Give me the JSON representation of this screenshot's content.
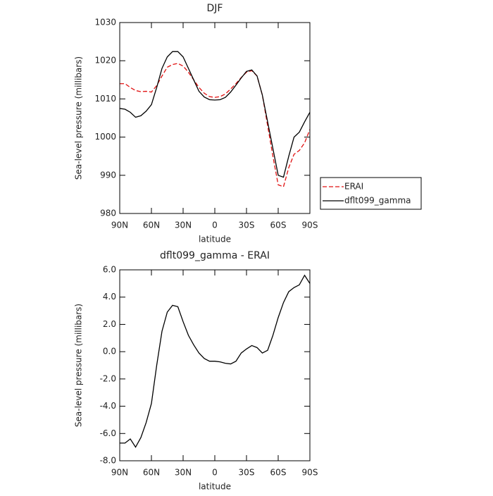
{
  "chart_data": [
    {
      "type": "line",
      "title": "DJF",
      "x_label": "latitude",
      "y_label": "Sea-level pressure (millibars)",
      "x": [
        90,
        85,
        80,
        75,
        70,
        65,
        60,
        55,
        50,
        45,
        40,
        35,
        30,
        25,
        20,
        15,
        10,
        5,
        0,
        -5,
        -10,
        -15,
        -20,
        -25,
        -30,
        -35,
        -40,
        -45,
        -50,
        -55,
        -60,
        -65,
        -70,
        -75,
        -80,
        -85,
        -90
      ],
      "series": [
        {
          "name": "ERAI",
          "color": "#e01010",
          "line_style": "dashed",
          "values": [
            1014,
            1014,
            1013,
            1012.2,
            1011.9,
            1012,
            1011.8,
            1013.5,
            1016,
            1018.3,
            1019,
            1019.3,
            1018.6,
            1017,
            1015,
            1013,
            1011.5,
            1010.6,
            1010.4,
            1010.6,
            1011.3,
            1012.6,
            1014,
            1015.6,
            1017,
            1017.4,
            1016,
            1011,
            1003,
            995,
            987.5,
            987,
            992,
            995.5,
            996.5,
            998.5,
            1002
          ]
        },
        {
          "name": "dflt099_gamma",
          "color": "#000000",
          "line_style": "solid",
          "values": [
            1007.5,
            1007.3,
            1006.5,
            1005.2,
            1005.6,
            1006.8,
            1008.5,
            1013,
            1018,
            1021,
            1022.4,
            1022.4,
            1021,
            1018,
            1015,
            1012,
            1010.5,
            1009.8,
            1009.7,
            1009.8,
            1010.4,
            1011.8,
            1013.6,
            1015.5,
            1017.2,
            1017.6,
            1016,
            1011,
            1004,
            997,
            990,
            989.5,
            995,
            1000,
            1001.3,
            1004,
            1006.5
          ]
        }
      ],
      "xlim": [
        90,
        -90
      ],
      "xticks": [
        {
          "value": 90,
          "label": "90N"
        },
        {
          "value": 60,
          "label": "60N"
        },
        {
          "value": 30,
          "label": "30N"
        },
        0,
        {
          "value": -30,
          "label": "30S"
        },
        {
          "value": -60,
          "label": "60S"
        },
        {
          "value": -90,
          "label": "90S"
        }
      ],
      "ylim": [
        980,
        1030
      ],
      "yticks": [
        980,
        990,
        1000,
        1010,
        1020,
        1030
      ],
      "legend": "right"
    },
    {
      "type": "line",
      "title": "dflt099_gamma - ERAI",
      "x_label": "latitude",
      "y_label": "Sea-level pressure (millibars)",
      "x": [
        90,
        85,
        80,
        75,
        70,
        65,
        60,
        55,
        50,
        45,
        40,
        35,
        30,
        25,
        20,
        15,
        10,
        5,
        0,
        -5,
        -10,
        -15,
        -20,
        -25,
        -30,
        -35,
        -40,
        -45,
        -50,
        -55,
        -60,
        -65,
        -70,
        -75,
        -80,
        -85,
        -90
      ],
      "series": [
        {
          "color": "#000000",
          "line_style": "solid",
          "values": [
            -6.7,
            -6.7,
            -6.4,
            -7.0,
            -6.3,
            -5.2,
            -3.8,
            -1.0,
            1.5,
            2.9,
            3.4,
            3.3,
            2.2,
            1.2,
            0.5,
            -0.1,
            -0.5,
            -0.7,
            -0.7,
            -0.75,
            -0.85,
            -0.9,
            -0.7,
            -0.1,
            0.2,
            0.45,
            0.3,
            -0.1,
            0.1,
            1.2,
            2.5,
            3.6,
            4.4,
            4.7,
            4.9,
            5.6,
            5.0
          ]
        }
      ],
      "xlim": [
        90,
        -90
      ],
      "xticks": [
        {
          "value": 90,
          "label": "90N"
        },
        {
          "value": 60,
          "label": "60N"
        },
        {
          "value": 30,
          "label": "30N"
        },
        0,
        {
          "value": -30,
          "label": "30S"
        },
        {
          "value": -60,
          "label": "60S"
        },
        {
          "value": -90,
          "label": "90S"
        }
      ],
      "ylim": [
        -8,
        6
      ],
      "yticks": [
        {
          "value": -8,
          "label": "-8.0"
        },
        {
          "value": -6,
          "label": "-6.0"
        },
        {
          "value": -4,
          "label": "-4.0"
        },
        {
          "value": -2,
          "label": "-2.0"
        },
        {
          "value": 0,
          "label": "0.0"
        },
        {
          "value": 2,
          "label": "2.0"
        },
        {
          "value": 4,
          "label": "4.0"
        },
        {
          "value": 6,
          "label": "6.0"
        }
      ]
    }
  ]
}
